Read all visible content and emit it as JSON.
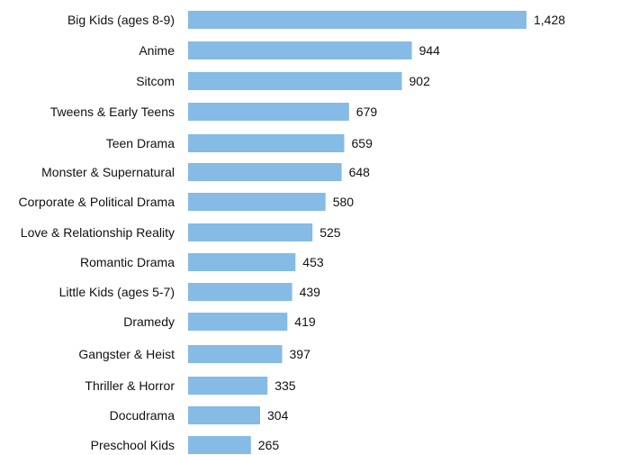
{
  "chart_data": {
    "type": "bar",
    "orientation": "horizontal",
    "categories": [
      "Big Kids (ages 8-9)",
      "Anime",
      "Sitcom",
      "Tweens & Early Teens",
      "Teen Drama",
      "Monster & Supernatural",
      "Corporate & Political Drama",
      "Love & Relationship Reality",
      "Romantic Drama",
      "Little Kids (ages 5-7)",
      "Dramedy",
      "Gangster & Heist",
      "Thriller & Horror",
      "Docudrama",
      "Preschool Kids"
    ],
    "values": [
      1428,
      944,
      902,
      679,
      659,
      648,
      580,
      525,
      453,
      439,
      419,
      397,
      335,
      304,
      265
    ],
    "value_labels": [
      "1,428",
      "944",
      "902",
      "679",
      "659",
      "648",
      "580",
      "525",
      "453",
      "439",
      "419",
      "397",
      "335",
      "304",
      "265"
    ],
    "bar_color": "#85BBE5",
    "grid": false,
    "legend": "none"
  }
}
